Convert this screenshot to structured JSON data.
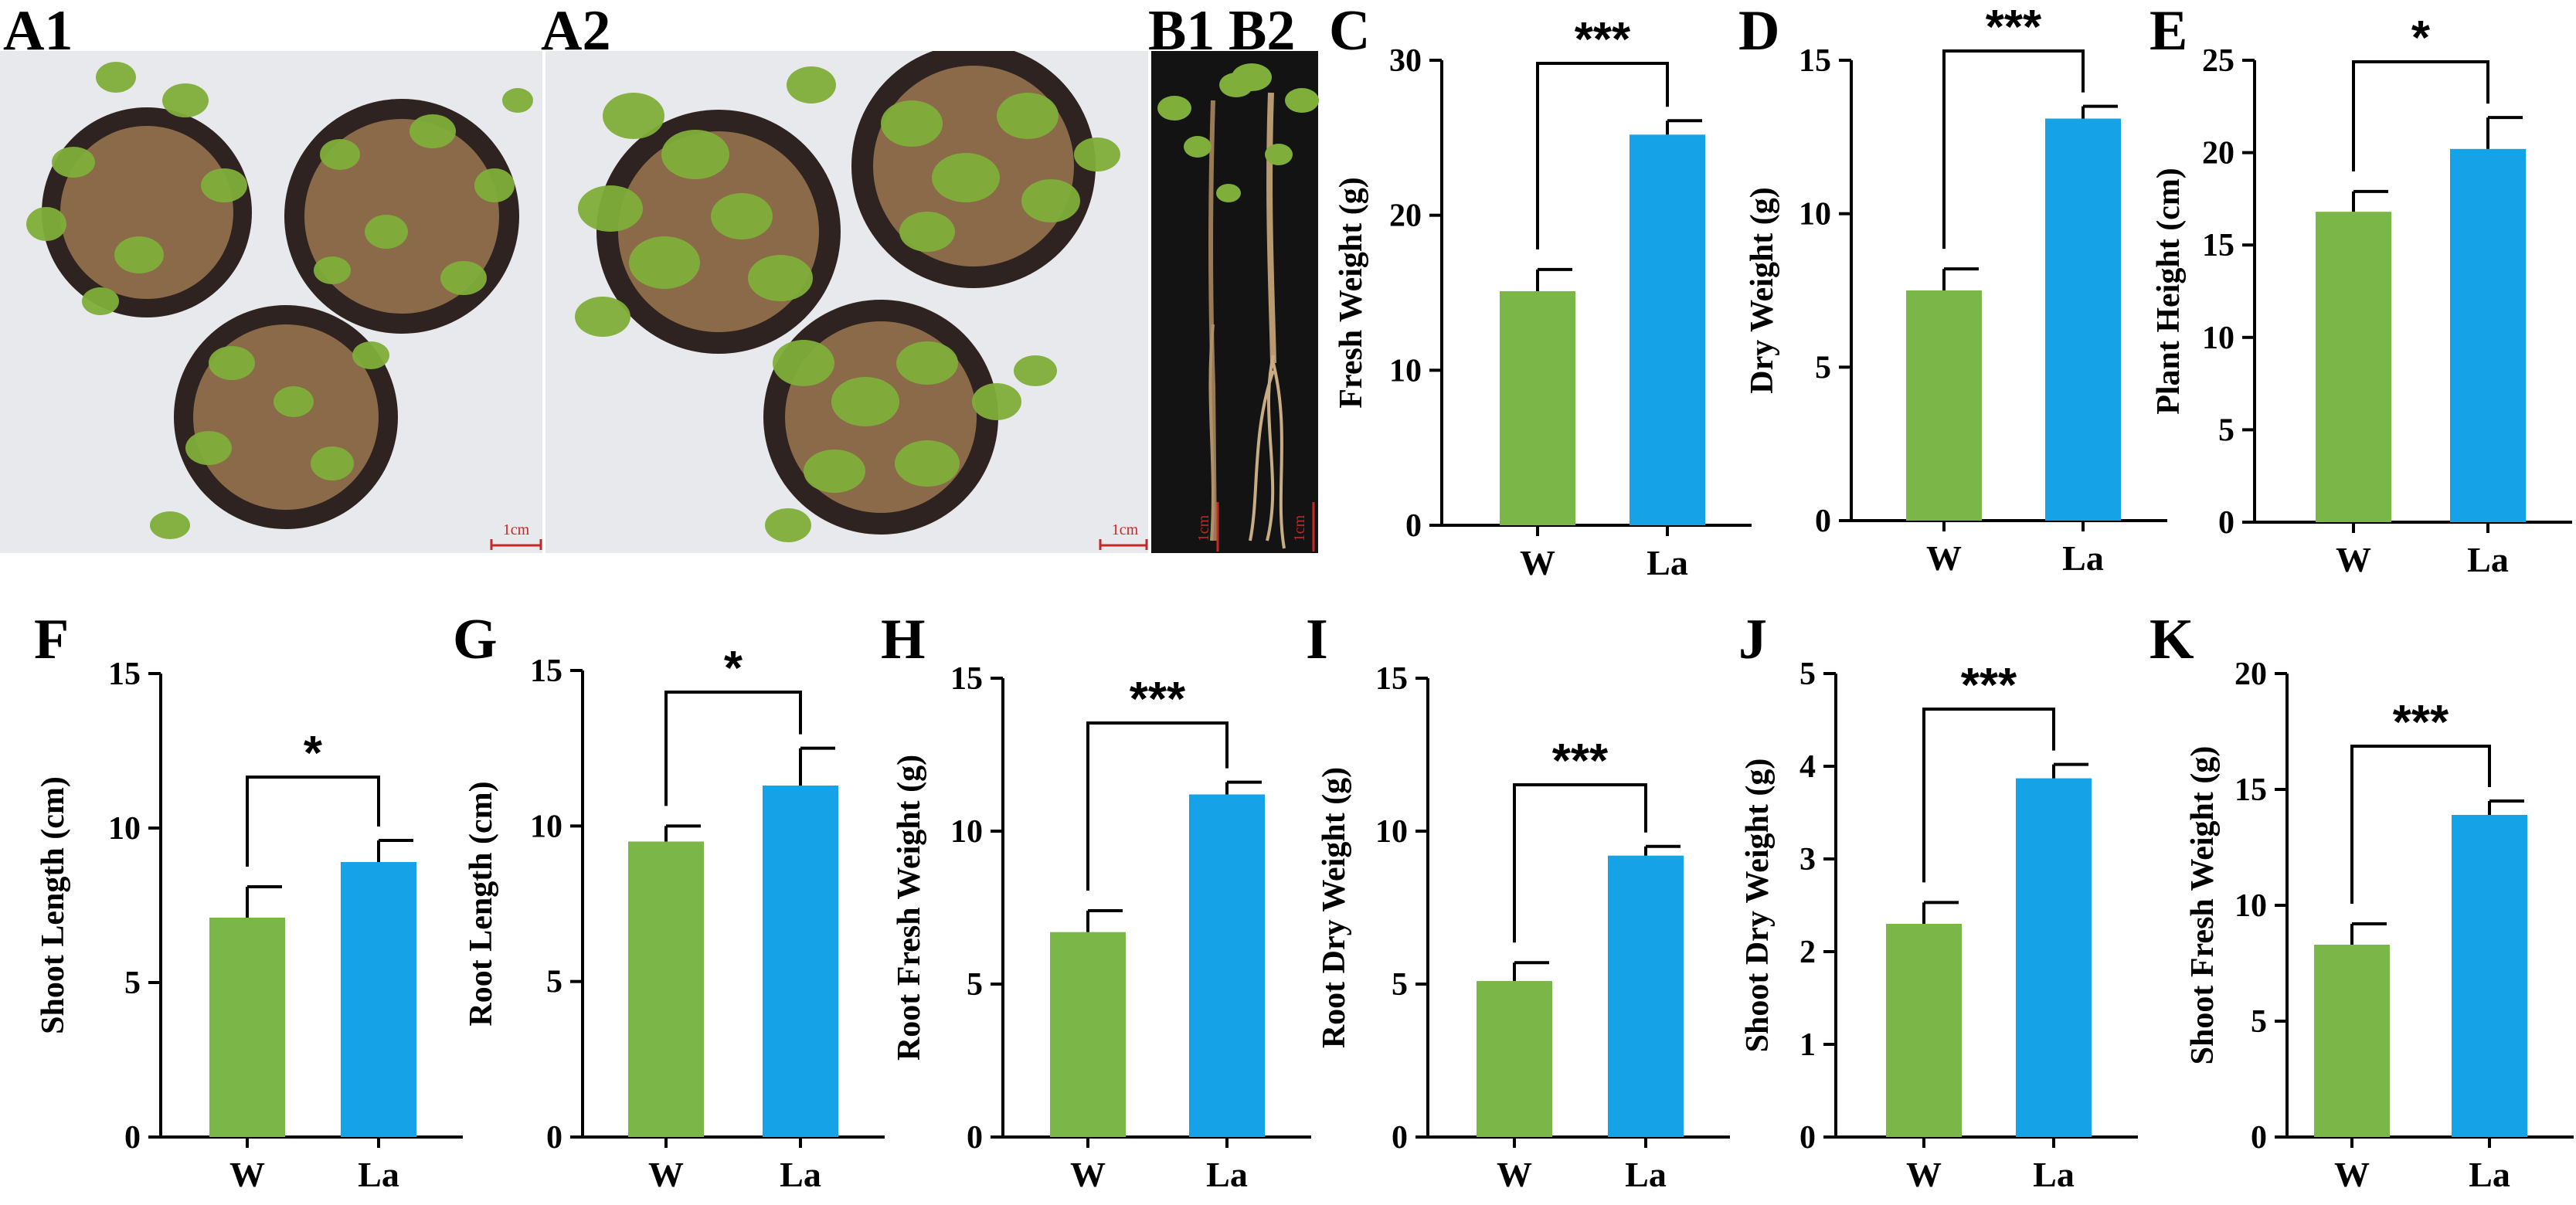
{
  "photos": {
    "labels": [
      "A1",
      "A2",
      "B1",
      "B2"
    ],
    "scale_bar_label": "1cm",
    "background_color": "#e8e9ec",
    "pot_color": "#2e2320",
    "soil_color": "#8a6a48",
    "leaf_color": "#7fae3a"
  },
  "colors": {
    "W": "#7ab648",
    "La": "#16a2e6"
  },
  "chart_data": [
    {
      "panel": "C",
      "type": "bar",
      "categories": [
        "W",
        "La"
      ],
      "values": [
        15.1,
        25.2
      ],
      "errors": [
        1.4,
        0.9
      ],
      "ylabel": "Fresh Weight (g)",
      "ylim": [
        0,
        30
      ],
      "yticks": [
        0,
        10,
        20,
        30
      ],
      "significance": "***",
      "grid": false
    },
    {
      "panel": "D",
      "type": "bar",
      "categories": [
        "W",
        "La"
      ],
      "values": [
        7.5,
        13.1
      ],
      "errors": [
        0.7,
        0.4
      ],
      "ylabel": "Dry Weight (g)",
      "ylim": [
        0,
        15
      ],
      "yticks": [
        0,
        5,
        10,
        15
      ],
      "significance": "***",
      "grid": false
    },
    {
      "panel": "E",
      "type": "bar",
      "categories": [
        "W",
        "La"
      ],
      "values": [
        16.8,
        20.2
      ],
      "errors": [
        1.1,
        1.7
      ],
      "ylabel": "Plant Height (cm)",
      "ylim": [
        0,
        25
      ],
      "yticks": [
        0,
        5,
        10,
        15,
        20,
        25
      ],
      "significance": "*",
      "grid": false
    },
    {
      "panel": "F",
      "type": "bar",
      "categories": [
        "W",
        "La"
      ],
      "values": [
        7.1,
        8.9
      ],
      "errors": [
        1.0,
        0.7
      ],
      "ylabel": "Shoot  Length (cm)",
      "ylim": [
        0,
        15
      ],
      "yticks": [
        0,
        5,
        10,
        15
      ],
      "significance": "*",
      "grid": false
    },
    {
      "panel": "G",
      "type": "bar",
      "categories": [
        "W",
        "La"
      ],
      "values": [
        9.5,
        11.3
      ],
      "errors": [
        0.5,
        1.2
      ],
      "ylabel": "Root Length (cm)",
      "ylim": [
        0,
        15
      ],
      "yticks": [
        0,
        5,
        10,
        15
      ],
      "significance": "*",
      "grid": false
    },
    {
      "panel": "H",
      "type": "bar",
      "categories": [
        "W",
        "La"
      ],
      "values": [
        6.7,
        11.2
      ],
      "errors": [
        0.7,
        0.4
      ],
      "ylabel": "Root Fresh Weight (g)",
      "ylim": [
        0,
        15
      ],
      "yticks": [
        0,
        5,
        10,
        15
      ],
      "significance": "***",
      "grid": false
    },
    {
      "panel": "I",
      "type": "bar",
      "categories": [
        "W",
        "La"
      ],
      "values": [
        5.1,
        9.2
      ],
      "errors": [
        0.6,
        0.3
      ],
      "ylabel": "Root Dry Weight (g)",
      "ylim": [
        0,
        15
      ],
      "yticks": [
        0,
        5,
        10,
        15
      ],
      "significance": "***",
      "grid": false
    },
    {
      "panel": "J",
      "type": "bar",
      "categories": [
        "W",
        "La"
      ],
      "values": [
        2.3,
        3.87
      ],
      "errors": [
        0.23,
        0.15
      ],
      "ylabel": "Shoot Dry Weight (g)",
      "ylim": [
        0,
        5
      ],
      "yticks": [
        0,
        1,
        2,
        3,
        4,
        5
      ],
      "significance": "***",
      "grid": false
    },
    {
      "panel": "K",
      "type": "bar",
      "categories": [
        "W",
        "La"
      ],
      "values": [
        8.3,
        13.9
      ],
      "errors": [
        0.9,
        0.6
      ],
      "ylabel": "Shoot Fresh Weight (g)",
      "ylim": [
        0,
        20
      ],
      "yticks": [
        0,
        5,
        10,
        15,
        20
      ],
      "significance": "***",
      "grid": false
    }
  ]
}
